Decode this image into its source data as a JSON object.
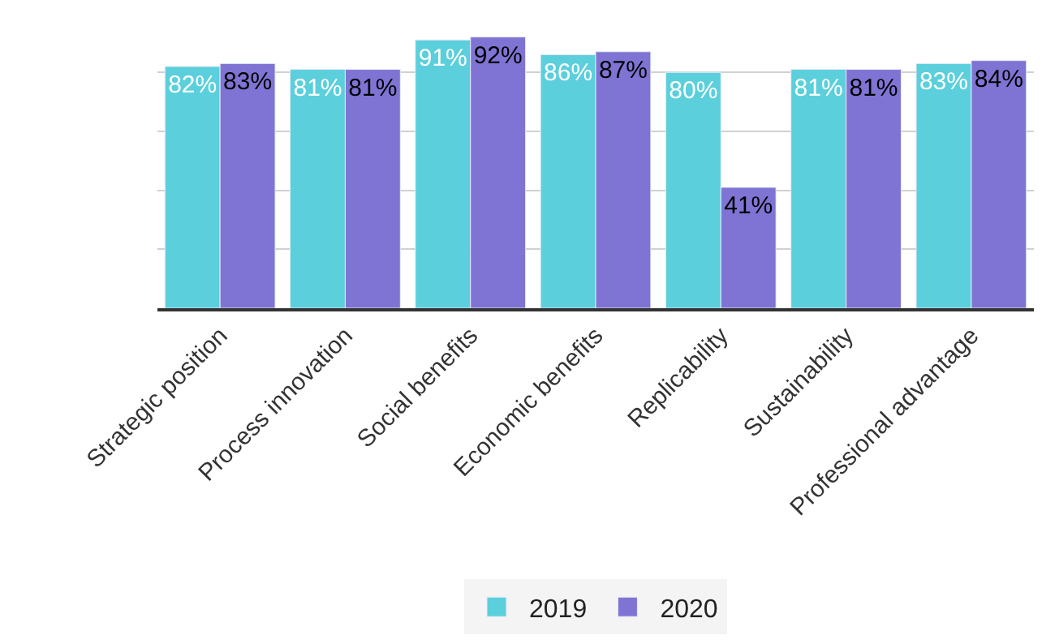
{
  "chart_data": {
    "type": "bar",
    "categories": [
      "Strategic position",
      "Process innovation",
      "Social benefits",
      "Economic benefits",
      "Replicability",
      "Sustainability",
      "Professional advantage"
    ],
    "series": [
      {
        "name": "2019",
        "color": "#5bcfdc",
        "values": [
          82,
          81,
          91,
          86,
          80,
          81,
          83
        ],
        "value_labels": [
          "82%",
          "81%",
          "91%",
          "86%",
          "80%",
          "81%",
          "83%"
        ]
      },
      {
        "name": "2020",
        "color": "#7f74d4",
        "values": [
          83,
          81,
          92,
          87,
          41,
          81,
          84
        ],
        "value_labels": [
          "83%",
          "81%",
          "92%",
          "87%",
          "41%",
          "81%",
          "84%"
        ]
      }
    ],
    "grid": "y",
    "legend": "bottom",
    "tick_labels": "x"
  }
}
